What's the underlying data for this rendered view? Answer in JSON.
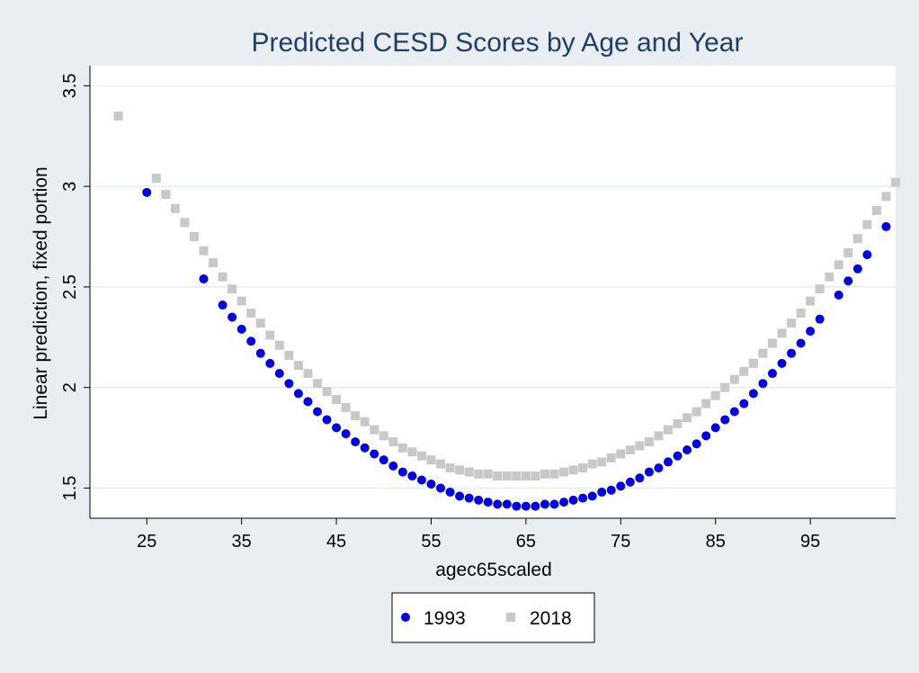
{
  "chart_data": {
    "type": "scatter",
    "title": "Predicted CESD Scores by Age and Year",
    "xlabel": "agec65scaled",
    "ylabel": "Linear prediction, fixed portion",
    "xlim": [
      19,
      104
    ],
    "ylim": [
      1.35,
      3.6
    ],
    "x_ticks": [
      25,
      35,
      45,
      55,
      65,
      75,
      85,
      95
    ],
    "x_tick_labels": [
      "25",
      "35",
      "45",
      "55",
      "65",
      "75",
      "85",
      "95"
    ],
    "y_ticks": [
      1.5,
      2,
      2.5,
      3,
      3.5
    ],
    "y_tick_labels": [
      "1.5",
      "2",
      "2.5",
      "3",
      "3.5"
    ],
    "grid": "horizontal",
    "legend": "bottom",
    "colors": {
      "background": "#e8eef1",
      "plot_background": "#ffffff",
      "grid": "#e4eef1",
      "series_1993": "#0000ee",
      "series_2018": "#c8c8c8"
    },
    "series": [
      {
        "name": "1993",
        "marker": "circle",
        "color": "#0000ee",
        "x": [
          25,
          31,
          33,
          34,
          35,
          36,
          37,
          38,
          39,
          40,
          41,
          42,
          43,
          44,
          45,
          46,
          47,
          48,
          49,
          50,
          51,
          52,
          53,
          54,
          55,
          56,
          57,
          58,
          59,
          60,
          61,
          62,
          63,
          64,
          65,
          66,
          67,
          68,
          69,
          70,
          71,
          72,
          73,
          74,
          75,
          76,
          77,
          78,
          79,
          80,
          81,
          82,
          83,
          84,
          85,
          86,
          87,
          88,
          89,
          90,
          91,
          92,
          93,
          94,
          95,
          96,
          98,
          99,
          100,
          101,
          103
        ],
        "y": [
          2.97,
          2.54,
          2.41,
          2.35,
          2.29,
          2.23,
          2.17,
          2.12,
          2.07,
          2.02,
          1.97,
          1.93,
          1.88,
          1.84,
          1.8,
          1.77,
          1.73,
          1.7,
          1.67,
          1.64,
          1.61,
          1.58,
          1.56,
          1.54,
          1.52,
          1.5,
          1.48,
          1.46,
          1.45,
          1.44,
          1.43,
          1.42,
          1.42,
          1.41,
          1.41,
          1.41,
          1.42,
          1.42,
          1.43,
          1.44,
          1.45,
          1.46,
          1.48,
          1.49,
          1.51,
          1.53,
          1.55,
          1.58,
          1.6,
          1.63,
          1.66,
          1.69,
          1.72,
          1.76,
          1.8,
          1.84,
          1.88,
          1.92,
          1.97,
          2.02,
          2.07,
          2.12,
          2.17,
          2.22,
          2.28,
          2.34,
          2.46,
          2.53,
          2.59,
          2.66,
          2.8
        ]
      },
      {
        "name": "2018",
        "marker": "square",
        "color": "#c8c8c8",
        "x": [
          22,
          26,
          27,
          28,
          29,
          30,
          31,
          32,
          33,
          34,
          35,
          36,
          37,
          38,
          39,
          40,
          41,
          42,
          43,
          44,
          45,
          46,
          47,
          48,
          49,
          50,
          51,
          52,
          53,
          54,
          55,
          56,
          57,
          58,
          59,
          60,
          61,
          62,
          63,
          64,
          65,
          66,
          67,
          68,
          69,
          70,
          71,
          72,
          73,
          74,
          75,
          76,
          77,
          78,
          79,
          80,
          81,
          82,
          83,
          84,
          85,
          86,
          87,
          88,
          89,
          90,
          91,
          92,
          93,
          94,
          95,
          96,
          97,
          98,
          99,
          100,
          101,
          102,
          103,
          104
        ],
        "y": [
          3.35,
          3.04,
          2.96,
          2.89,
          2.82,
          2.75,
          2.68,
          2.62,
          2.55,
          2.49,
          2.43,
          2.37,
          2.32,
          2.26,
          2.21,
          2.16,
          2.11,
          2.07,
          2.02,
          1.98,
          1.94,
          1.9,
          1.86,
          1.83,
          1.79,
          1.76,
          1.73,
          1.7,
          1.68,
          1.66,
          1.64,
          1.62,
          1.6,
          1.59,
          1.58,
          1.57,
          1.57,
          1.56,
          1.56,
          1.56,
          1.56,
          1.56,
          1.57,
          1.57,
          1.58,
          1.59,
          1.6,
          1.62,
          1.63,
          1.65,
          1.67,
          1.69,
          1.71,
          1.73,
          1.76,
          1.79,
          1.82,
          1.85,
          1.88,
          1.92,
          1.96,
          2.0,
          2.04,
          2.08,
          2.12,
          2.17,
          2.22,
          2.27,
          2.32,
          2.37,
          2.43,
          2.49,
          2.55,
          2.61,
          2.67,
          2.74,
          2.81,
          2.88,
          2.95,
          3.02
        ]
      }
    ]
  }
}
